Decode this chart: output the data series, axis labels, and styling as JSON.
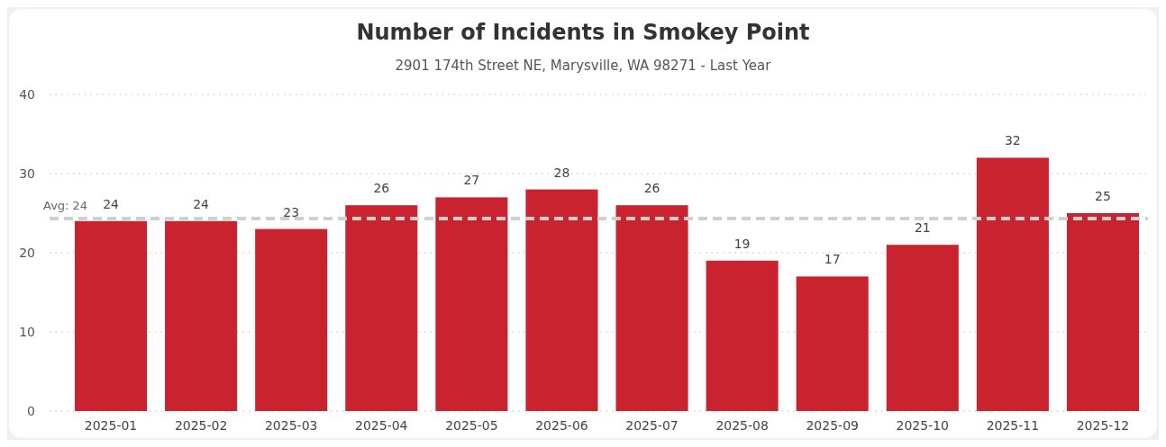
{
  "chart_data": {
    "type": "bar",
    "title": "Number of Incidents in Smokey Point",
    "subtitle": "2901 174th Street NE, Marysville, WA 98271 - Last Year",
    "categories": [
      "2025-01",
      "2025-02",
      "2025-03",
      "2025-04",
      "2025-05",
      "2025-06",
      "2025-07",
      "2025-08",
      "2025-09",
      "2025-10",
      "2025-11",
      "2025-12"
    ],
    "values": [
      24,
      24,
      23,
      26,
      27,
      28,
      26,
      19,
      17,
      21,
      32,
      25
    ],
    "color": "#c8232f",
    "ylim": [
      0,
      40
    ],
    "yticks": [
      0,
      10,
      20,
      30,
      40
    ],
    "grid": "y",
    "data_labels": true,
    "ref_lines": [
      {
        "axis": "y",
        "value": 24.33,
        "label": "Avg: 24",
        "color": "#d0d0d0",
        "line_style": "dashed"
      }
    ]
  }
}
